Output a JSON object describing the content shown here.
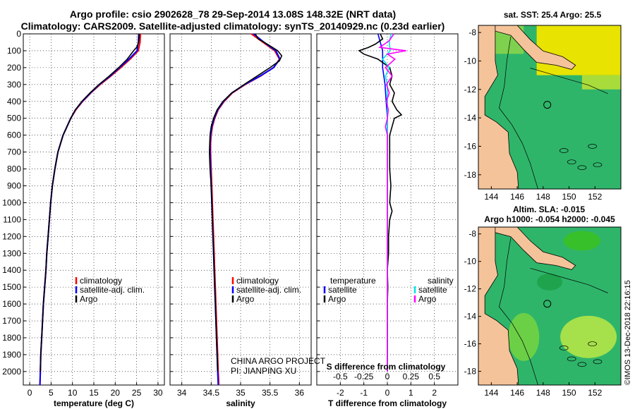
{
  "title_line1": "Argo profile: csio 2902628_78 29-Sep-2014 13.08S 148.32E (NRT data)",
  "title_line2": "Climatology: CARS2009. Satellite-adjusted climatology: synTS_20140929.nc (0.23d earlier)",
  "colors": {
    "climatology": "#ff0000",
    "satellite": "#0000ff",
    "argo": "#000000",
    "argo_salinity": "#ff00ff",
    "satellite_salinity": "#00e5e5",
    "land": "#f5c39a",
    "ocean": "#2fb56a"
  },
  "chart_data": [
    {
      "type": "line",
      "panel": "temperature",
      "xlabel": "temperature (deg C)",
      "ylabel": "",
      "xlim": [
        -1.5,
        31.5
      ],
      "ylim": [
        2080,
        0
      ],
      "xticks": [
        "0",
        "5",
        "10",
        "15",
        "20",
        "25",
        "30"
      ],
      "yticks": [
        "0",
        "100",
        "200",
        "300",
        "400",
        "500",
        "600",
        "700",
        "800",
        "900",
        "1000",
        "1100",
        "1200",
        "1300",
        "1400",
        "1500",
        "1600",
        "1700",
        "1800",
        "1900",
        "2000"
      ],
      "legend": [
        "climatology",
        "satellite-adj. clim.",
        "Argo"
      ],
      "legend_location": "lower-center",
      "series": [
        {
          "name": "climatology",
          "depth": [
            0,
            50,
            100,
            150,
            200,
            250,
            300,
            350,
            400,
            450,
            500,
            600,
            700,
            800,
            900,
            1000,
            1100,
            1200,
            1300,
            1400,
            1500,
            1600,
            1700,
            1800,
            1900,
            2000,
            2080
          ],
          "values": [
            25.9,
            25.8,
            25.4,
            23.5,
            21.3,
            19.0,
            16.5,
            14.3,
            12.4,
            10.8,
            9.6,
            7.8,
            6.6,
            5.9,
            5.3,
            4.9,
            4.6,
            4.3,
            4.0,
            3.8,
            3.5,
            3.2,
            3.0,
            2.8,
            2.6,
            2.5,
            2.4
          ]
        },
        {
          "name": "satellite-adj. clim.",
          "depth": [
            0,
            50,
            100,
            150,
            200,
            250,
            300,
            350,
            400,
            450,
            500,
            600,
            700,
            800,
            900,
            1000,
            1100,
            1200,
            1300,
            1400,
            1500,
            1600,
            1700,
            1800,
            1900,
            2000,
            2080
          ],
          "values": [
            25.5,
            25.4,
            25.1,
            23.2,
            21.0,
            18.8,
            16.3,
            14.2,
            12.3,
            10.7,
            9.6,
            7.8,
            6.6,
            5.9,
            5.3,
            4.9,
            4.6,
            4.3,
            4.0,
            3.8,
            3.5,
            3.2,
            3.0,
            2.8,
            2.6,
            2.5,
            2.4
          ]
        },
        {
          "name": "Argo",
          "depth": [
            0,
            20,
            50,
            80,
            100,
            150,
            200,
            250,
            300,
            350,
            400,
            450,
            500,
            600,
            700,
            800,
            900,
            1000,
            1100,
            1200,
            1300,
            1400,
            1500,
            1600,
            1700,
            1800,
            1900,
            2000
          ],
          "values": [
            25.6,
            25.6,
            25.5,
            25.0,
            24.3,
            22.8,
            20.8,
            18.6,
            16.2,
            14.1,
            12.2,
            10.7,
            9.6,
            7.8,
            6.6,
            5.9,
            5.3,
            4.9,
            4.6,
            4.3,
            4.0,
            3.8,
            3.5,
            3.2,
            3.0,
            2.8,
            2.6,
            2.5
          ]
        }
      ]
    },
    {
      "type": "line",
      "panel": "salinity",
      "xlabel": "salinity",
      "xlim": [
        33.8,
        36.2
      ],
      "ylim": [
        2080,
        0
      ],
      "xticks": [
        "34",
        "34.5",
        "35",
        "35.5",
        "36"
      ],
      "legend": [
        "climatology",
        "satellite-adj. clim.",
        "Argo"
      ],
      "legend_location": "lower-right",
      "annotation": [
        "CHINA ARGO PROJECT",
        "PI: JIANPING XU"
      ],
      "series": [
        {
          "name": "climatology",
          "depth": [
            0,
            50,
            100,
            150,
            200,
            250,
            300,
            350,
            400,
            450,
            500,
            550,
            600,
            650,
            700,
            800,
            900,
            1000,
            1100,
            1200,
            1300,
            1400,
            1500,
            1600,
            1700,
            1800,
            1900,
            2000,
            2080
          ],
          "values": [
            35.18,
            35.38,
            35.58,
            35.66,
            35.56,
            35.34,
            35.08,
            34.86,
            34.72,
            34.62,
            34.56,
            34.52,
            34.5,
            34.49,
            34.49,
            34.5,
            34.51,
            34.52,
            34.53,
            34.54,
            34.55,
            34.56,
            34.57,
            34.58,
            34.59,
            34.6,
            34.61,
            34.62,
            34.63
          ]
        },
        {
          "name": "satellite-adj. clim.",
          "depth": [
            0,
            50,
            100,
            150,
            200,
            250,
            300,
            350,
            400,
            450,
            500,
            550,
            600,
            650,
            700,
            800,
            900,
            1000,
            1100,
            1200,
            1300,
            1400,
            1500,
            1600,
            1700,
            1800,
            1900,
            2000,
            2080
          ],
          "values": [
            35.22,
            35.4,
            35.6,
            35.67,
            35.56,
            35.33,
            35.07,
            34.85,
            34.71,
            34.61,
            34.55,
            34.51,
            34.49,
            34.48,
            34.48,
            34.49,
            34.5,
            34.51,
            34.52,
            34.53,
            34.54,
            34.55,
            34.56,
            34.57,
            34.58,
            34.59,
            34.6,
            34.61,
            34.62
          ]
        },
        {
          "name": "Argo",
          "depth": [
            0,
            30,
            60,
            100,
            130,
            160,
            200,
            250,
            300,
            350,
            400,
            450,
            500,
            550,
            600,
            700,
            800,
            900,
            1000,
            1100,
            1200,
            1300,
            1400,
            1500,
            1600,
            1700,
            1800,
            1900,
            2000
          ],
          "values": [
            35.25,
            35.3,
            35.45,
            35.63,
            35.7,
            35.66,
            35.5,
            35.28,
            35.06,
            34.85,
            34.7,
            34.6,
            34.54,
            34.5,
            34.48,
            34.47,
            34.48,
            34.5,
            34.51,
            34.52,
            34.53,
            34.54,
            34.55,
            34.56,
            34.57,
            34.58,
            34.59,
            34.6,
            34.61
          ]
        }
      ]
    },
    {
      "type": "line",
      "panel": "difference",
      "xlabel": "T difference from climatology",
      "xlabel_top": "S difference from climatology",
      "xlim": [
        -3,
        3
      ],
      "ylim": [
        2080,
        0
      ],
      "xticks": [
        "-2",
        "-1",
        "0",
        "1",
        "2"
      ],
      "xticks_s": [
        "-0.5",
        "-0.25",
        "0",
        "0.25",
        "0.5"
      ],
      "legend_left_title": "temperature",
      "legend_left": [
        "satellite",
        "Argo"
      ],
      "legend_right_title": "salinity",
      "legend_right": [
        "satellite",
        "Argo"
      ],
      "series": [
        {
          "name": "T satellite",
          "depth": [
            0,
            50,
            100,
            150,
            200,
            300,
            400,
            500,
            700,
            1000,
            1500,
            2000
          ],
          "values": [
            -0.4,
            -0.3,
            -0.2,
            -0.2,
            -0.2,
            -0.1,
            -0.05,
            0,
            0,
            0,
            0,
            0
          ]
        },
        {
          "name": "T Argo",
          "depth": [
            0,
            30,
            60,
            80,
            100,
            120,
            150,
            200,
            250,
            300,
            350,
            400,
            450,
            480,
            500,
            600,
            700,
            800,
            900,
            1000,
            1050,
            1100,
            1200,
            1300,
            1400,
            1500,
            1600,
            1700,
            1800,
            1900,
            2000
          ],
          "values": [
            -0.3,
            -0.2,
            -0.5,
            -0.8,
            -1.2,
            -1.0,
            -0.4,
            0.1,
            0.2,
            0.1,
            0.3,
            0.2,
            0.4,
            0.6,
            0.3,
            0.1,
            0.1,
            0.1,
            0.15,
            0.1,
            0.2,
            0.1,
            0.05,
            0.05,
            0,
            0.02,
            0,
            0,
            0,
            0,
            0
          ]
        },
        {
          "name": "S satellite",
          "depth": [
            0,
            50,
            100,
            150,
            200,
            250,
            300,
            400,
            500,
            700,
            1000,
            1500,
            2000
          ],
          "values": [
            0.04,
            0.02,
            0.03,
            -0.05,
            0.02,
            -0.02,
            0.0,
            0.0,
            0.0,
            0.0,
            0.0,
            0.0,
            0.0
          ]
        },
        {
          "name": "S Argo",
          "depth": [
            0,
            40,
            80,
            100,
            120,
            150,
            200,
            250,
            300,
            350,
            400,
            450,
            500,
            550,
            600,
            700,
            800,
            1000,
            1500,
            2000
          ],
          "values": [
            0.07,
            0.02,
            -0.08,
            0.2,
            0.0,
            0.08,
            -0.02,
            0.05,
            -0.01,
            0.02,
            -0.01,
            0.01,
            0.0,
            -0.02,
            0.0,
            0.0,
            0.0,
            0.0,
            0.0,
            0.0
          ]
        }
      ]
    }
  ],
  "map_sst": {
    "title": "sat. SST: 25.4 Argo: 25.5",
    "xticks": [
      "144",
      "146",
      "148",
      "150",
      "152"
    ],
    "yticks": [
      "-8",
      "-10",
      "-12",
      "-14",
      "-16",
      "-18"
    ],
    "lon_range": [
      143,
      154
    ],
    "lat_range": [
      -19,
      -7.5
    ],
    "argo_lon": 148.32,
    "argo_lat": -13.08
  },
  "map_sla": {
    "title_line1": "Altim. SLA: -0.015",
    "title_line2": "Argo h1000: -0.054 h2000: -0.045",
    "xticks": [
      "144",
      "146",
      "148",
      "150",
      "152"
    ],
    "yticks": [
      "-8",
      "-10",
      "-12",
      "-14",
      "-16",
      "-18"
    ],
    "lon_range": [
      143,
      154
    ],
    "lat_range": [
      -19,
      -7.5
    ],
    "argo_lon": 148.32,
    "argo_lat": -13.08
  },
  "credit": "©IMOS 13-Dec-2018 22:16:15"
}
